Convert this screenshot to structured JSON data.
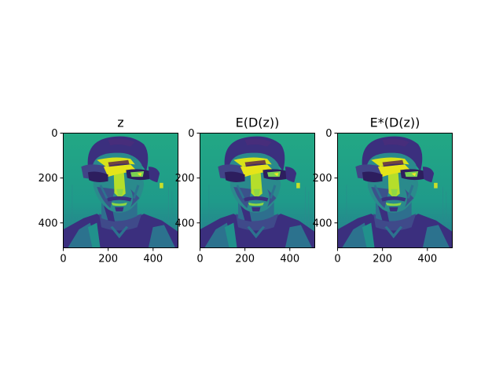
{
  "chart_data": [
    {
      "type": "heatmap",
      "title": "z",
      "xlabel": "",
      "ylabel": "",
      "xlim": [
        0,
        511
      ],
      "ylim": [
        511,
        0
      ],
      "xticks": [
        {
          "value": 0,
          "label": "0"
        },
        {
          "value": 200,
          "label": "200"
        },
        {
          "value": 400,
          "label": "400"
        }
      ],
      "yticks": [
        {
          "value": 0,
          "label": "0"
        },
        {
          "value": 200,
          "label": "200"
        },
        {
          "value": 400,
          "label": "400"
        }
      ],
      "colormap": "viridis",
      "content": "portrait"
    },
    {
      "type": "heatmap",
      "title": "E(D(z))",
      "xlabel": "",
      "ylabel": "",
      "xlim": [
        0,
        511
      ],
      "ylim": [
        511,
        0
      ],
      "xticks": [
        {
          "value": 0,
          "label": "0"
        },
        {
          "value": 200,
          "label": "200"
        },
        {
          "value": 400,
          "label": "400"
        }
      ],
      "yticks": [
        {
          "value": 0,
          "label": "0"
        },
        {
          "value": 200,
          "label": "200"
        },
        {
          "value": 400,
          "label": "400"
        }
      ],
      "colormap": "viridis",
      "content": "portrait"
    },
    {
      "type": "heatmap",
      "title": "E*(D(z))",
      "xlabel": "",
      "ylabel": "",
      "xlim": [
        0,
        511
      ],
      "ylim": [
        511,
        0
      ],
      "xticks": [
        {
          "value": 0,
          "label": "0"
        },
        {
          "value": 200,
          "label": "200"
        },
        {
          "value": 400,
          "label": "400"
        }
      ],
      "yticks": [
        {
          "value": 0,
          "label": "0"
        },
        {
          "value": 200,
          "label": "200"
        },
        {
          "value": 400,
          "label": "400"
        }
      ],
      "colormap": "viridis",
      "content": "portrait"
    }
  ],
  "colors": {
    "background": "#22a884",
    "dark": "#3b2f7e",
    "mid": "#2c728e",
    "bright": "#d8e219",
    "teal": "#21918c",
    "deep": "#440154",
    "lime": "#7ad151"
  }
}
